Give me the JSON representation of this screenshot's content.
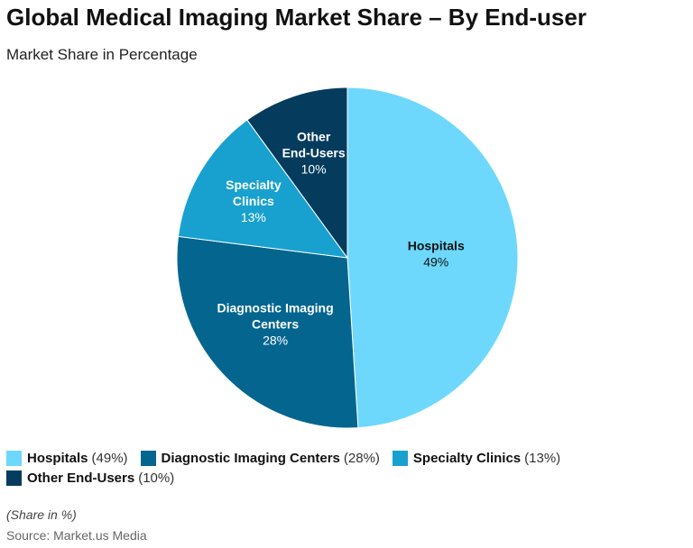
{
  "title": "Global Medical Imaging Market Share – By End-user",
  "subtitle": "Market Share in Percentage",
  "footnote": "(Share in %)",
  "source": "Source: Market.us Media",
  "chart_data": {
    "type": "pie",
    "slices": [
      {
        "label_lines": [
          "Hospitals"
        ],
        "name": "Hospitals",
        "value": 49,
        "pct_text": "49%",
        "legend_pct": "(49%)",
        "color": "#6DD8FC",
        "text_color": "#111111"
      },
      {
        "label_lines": [
          "Diagnostic Imaging",
          "Centers"
        ],
        "name": "Diagnostic Imaging Centers",
        "value": 28,
        "pct_text": "28%",
        "legend_pct": "(28%)",
        "color": "#04668F",
        "text_color": "#ffffff"
      },
      {
        "label_lines": [
          "Specialty",
          "Clinics"
        ],
        "name": "Specialty Clinics",
        "value": 13,
        "pct_text": "13%",
        "legend_pct": "(13%)",
        "color": "#18A1CF",
        "text_color": "#ffffff"
      },
      {
        "label_lines": [
          "Other",
          "End-Users"
        ],
        "name": "Other End-Users",
        "value": 10,
        "pct_text": "10%",
        "legend_pct": "(10%)",
        "color": "#053C5E",
        "text_color": "#ffffff"
      }
    ],
    "legend_position": "bottom"
  }
}
